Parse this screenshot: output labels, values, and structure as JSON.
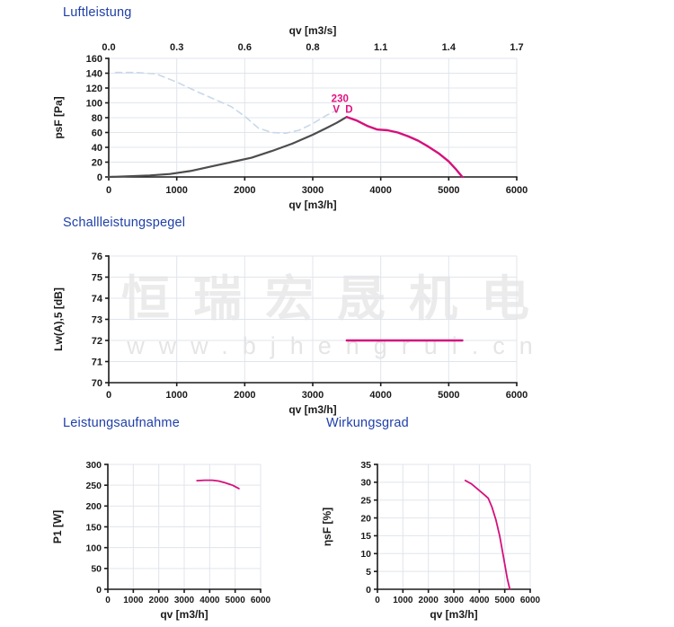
{
  "watermark": {
    "line1": "恒瑞宏晟机电",
    "line2": "www.bjhengrui.cn"
  },
  "colors": {
    "title_blue": "#1e3fa8",
    "pink": "#d5107c",
    "annotation_pink": "#e3117f",
    "dark_gray": "#4d4d4d",
    "dashed_blue": "#c9d8ea",
    "grid": "#e0e5ec",
    "axis": "#1a1a1a",
    "tick_text": "#1a1a1a",
    "watermark_gray": "#ebebeb",
    "watermark_gray2": "#e5e5e5"
  },
  "chart_data": [
    {
      "id": "luftleistung",
      "type": "line",
      "title": "Luftleistung",
      "xlabel": "qv [m3/h]",
      "ylabel": "psF [Pa]",
      "xlim": [
        0,
        6000
      ],
      "ylim": [
        0,
        160
      ],
      "xticks": [
        0,
        1000,
        2000,
        3000,
        4000,
        5000,
        6000
      ],
      "yticks": [
        0,
        20,
        40,
        60,
        80,
        100,
        120,
        140,
        160
      ],
      "grid": true,
      "top_axis": {
        "label": "qv [m3/s]",
        "tick_labels": [
          "0.0",
          "0.3",
          "0.6",
          "0.8",
          "1.1",
          "1.4",
          "1.7"
        ]
      },
      "annotation": {
        "lines": [
          "230",
          "V D"
        ],
        "x": 3400,
        "y": 101
      },
      "series": [
        {
          "name": "system-curve-dashed",
          "style": "dashed",
          "color_key": "dashed_blue",
          "width": 1.6,
          "points": [
            [
              100,
              141
            ],
            [
              400,
              141
            ],
            [
              700,
              139
            ],
            [
              1000,
              128
            ],
            [
              1300,
              115
            ],
            [
              1600,
              103
            ],
            [
              1800,
              95
            ],
            [
              2000,
              82
            ],
            [
              2200,
              66
            ],
            [
              2400,
              60
            ],
            [
              2600,
              59
            ],
            [
              2800,
              63
            ],
            [
              3000,
              72
            ],
            [
              3200,
              83
            ],
            [
              3350,
              90
            ]
          ]
        },
        {
          "name": "fan-curve-dark",
          "style": "solid",
          "color_key": "dark_gray",
          "width": 2.2,
          "points": [
            [
              0,
              0
            ],
            [
              300,
              1
            ],
            [
              600,
              2
            ],
            [
              900,
              4
            ],
            [
              1200,
              8
            ],
            [
              1500,
              14
            ],
            [
              1800,
              20
            ],
            [
              2100,
              26
            ],
            [
              2400,
              35
            ],
            [
              2700,
              45
            ],
            [
              3000,
              57
            ],
            [
              3200,
              66
            ],
            [
              3350,
              73
            ],
            [
              3500,
              81
            ]
          ]
        },
        {
          "name": "fan-curve-230vd",
          "style": "solid",
          "color_key": "pink",
          "width": 2.4,
          "points": [
            [
              3500,
              81
            ],
            [
              3650,
              76
            ],
            [
              3800,
              69
            ],
            [
              3950,
              64
            ],
            [
              4100,
              63
            ],
            [
              4250,
              60
            ],
            [
              4400,
              55
            ],
            [
              4550,
              49
            ],
            [
              4700,
              41
            ],
            [
              4850,
              32
            ],
            [
              5000,
              21
            ],
            [
              5100,
              11
            ],
            [
              5200,
              0
            ]
          ]
        }
      ]
    },
    {
      "id": "schallleistungspegel",
      "type": "line",
      "title": "Schallleistungspegel",
      "xlabel": "qv [m3/h]",
      "ylabel": "Lw(A),5 [dB]",
      "xlim": [
        0,
        6000
      ],
      "ylim": [
        70,
        76
      ],
      "xticks": [
        0,
        1000,
        2000,
        3000,
        4000,
        5000,
        6000
      ],
      "yticks": [
        70,
        71,
        72,
        73,
        74,
        75,
        76
      ],
      "grid": true,
      "series": [
        {
          "name": "sound-power-230vd",
          "style": "solid",
          "color_key": "pink",
          "width": 2.4,
          "points": [
            [
              3500,
              72
            ],
            [
              5200,
              72
            ]
          ]
        }
      ]
    },
    {
      "id": "leistungsaufnahme",
      "type": "line",
      "title": "Leistungsaufnahme",
      "xlabel": "qv [m3/h]",
      "ylabel": "P1 [W]",
      "xlim": [
        0,
        6000
      ],
      "ylim": [
        0,
        300
      ],
      "xticks": [
        0,
        1000,
        2000,
        3000,
        4000,
        5000,
        6000
      ],
      "yticks": [
        0,
        50,
        100,
        150,
        200,
        250,
        300
      ],
      "grid": true,
      "series": [
        {
          "name": "power-input-230vd",
          "style": "solid",
          "color_key": "pink",
          "width": 1.8,
          "points": [
            [
              3500,
              261
            ],
            [
              3800,
              262
            ],
            [
              4100,
              262
            ],
            [
              4350,
              260
            ],
            [
              4600,
              256
            ],
            [
              4900,
              250
            ],
            [
              5150,
              242
            ]
          ]
        }
      ]
    },
    {
      "id": "wirkungsgrad",
      "type": "line",
      "title": "Wirkungsgrad",
      "xlabel": "qv [m3/h]",
      "ylabel": "ηsF [%]",
      "xlim": [
        0,
        6000
      ],
      "ylim": [
        0,
        35
      ],
      "xticks": [
        0,
        1000,
        2000,
        3000,
        4000,
        5000,
        6000
      ],
      "yticks": [
        0,
        5,
        10,
        15,
        20,
        25,
        30,
        35
      ],
      "grid": true,
      "series": [
        {
          "name": "efficiency-230vd",
          "style": "solid",
          "color_key": "pink",
          "width": 1.8,
          "points": [
            [
              3450,
              30.5
            ],
            [
              3700,
              29.5
            ],
            [
              3950,
              28
            ],
            [
              4200,
              26.5
            ],
            [
              4350,
              25.5
            ],
            [
              4500,
              23
            ],
            [
              4650,
              19.5
            ],
            [
              4800,
              15
            ],
            [
              4950,
              9
            ],
            [
              5100,
              3
            ],
            [
              5200,
              0
            ]
          ]
        }
      ]
    }
  ]
}
